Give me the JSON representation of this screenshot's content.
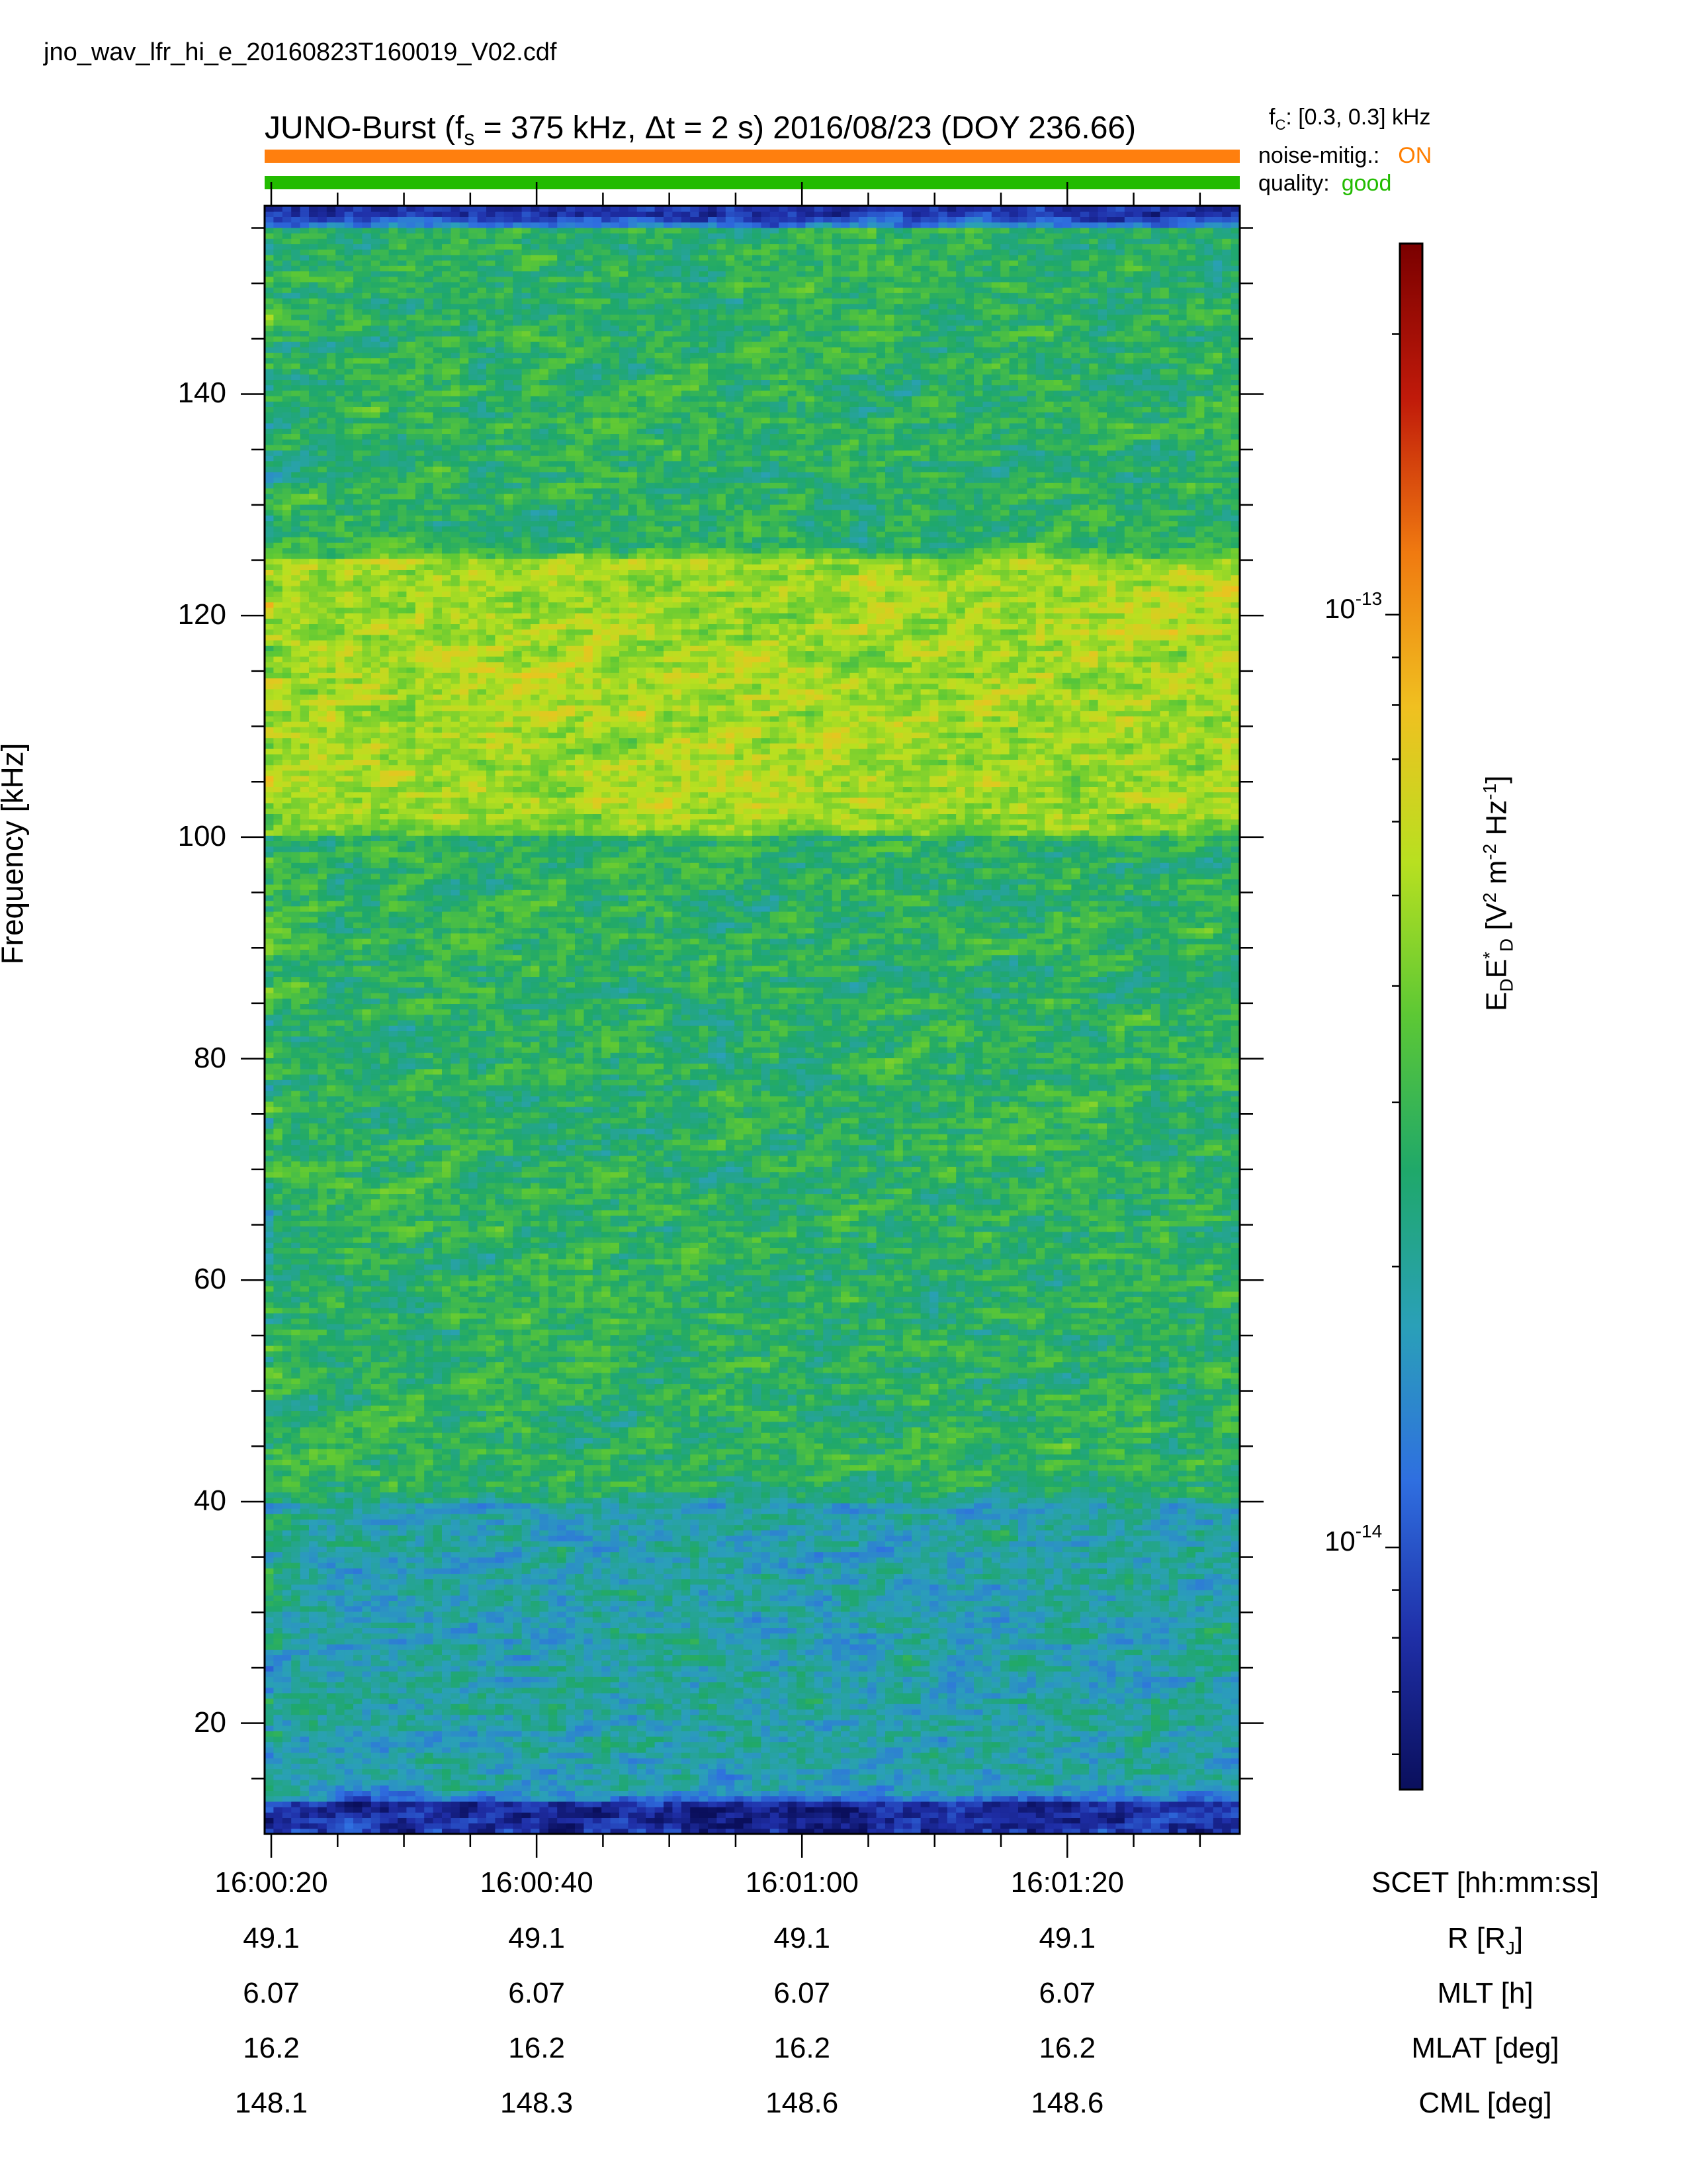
{
  "file_name": "jno_wav_lfr_hi_e_20160823T160019_V02.cdf",
  "header": {
    "title_pre": "JUNO-Burst (f",
    "title_sub": "s",
    "title_post": " = 375 kHz, Δt = 2 s)  2016/08/23 (DOY 236.66)",
    "fc_label": "f",
    "fc_sub": "C",
    "fc_value": ": [0.3, 0.3] kHz",
    "noise_label": "noise-mitig.:",
    "noise_value": "ON",
    "quality_label": "quality:",
    "quality_value": "good"
  },
  "colors": {
    "noise_bar": "#ff7f0e",
    "quality_bar": "#22bb00",
    "colormap": [
      "#0a0f5c",
      "#1f2fa8",
      "#2f6fe0",
      "#2aa0b8",
      "#1fa86a",
      "#5cc835",
      "#b8e020",
      "#f0c020",
      "#f07a10",
      "#c01a0a",
      "#7a0000"
    ]
  },
  "chart_data": {
    "type": "heatmap",
    "ylabel": "Frequency [kHz]",
    "ylim": [
      10,
      157
    ],
    "y_ticks": [
      20,
      40,
      60,
      80,
      100,
      120,
      140
    ],
    "y_minor_step": 5,
    "x_ticks": [
      "16:00:20",
      "16:00:40",
      "16:01:00",
      "16:01:20"
    ],
    "x_label": "SCET [hh:mm:ss]",
    "time_range_s": [
      19.5,
      93
    ],
    "x_tick_seconds": [
      20,
      40,
      60,
      80
    ],
    "x_minor_step_s": 5,
    "colorbar": {
      "label_parts": [
        "E",
        "D",
        "E",
        "*",
        "D",
        "  [V",
        "2",
        " m",
        "-2",
        " Hz",
        "-1",
        "]"
      ],
      "scale": "log",
      "range": [
        5.5e-15,
        2.5e-13
      ],
      "major_ticks": [
        1e-14,
        1e-13
      ],
      "major_tick_labels": [
        {
          "base": "10",
          "exp": "-14"
        },
        {
          "base": "10",
          "exp": "-13"
        }
      ]
    },
    "intensity_bands": [
      {
        "freq_range": [
          10,
          13
        ],
        "level": "very low"
      },
      {
        "freq_range": [
          13,
          40
        ],
        "level": "low"
      },
      {
        "freq_range": [
          40,
          100
        ],
        "level": "medium"
      },
      {
        "freq_range": [
          100,
          125
        ],
        "level": "high"
      },
      {
        "freq_range": [
          125,
          155
        ],
        "level": "medium"
      },
      {
        "freq_range": [
          155,
          157
        ],
        "level": "very low"
      }
    ],
    "ephemeris": {
      "rows": [
        {
          "label": "R [R",
          "label_sub": "J",
          "label_end": "]",
          "values": [
            "49.1",
            "49.1",
            "49.1",
            "49.1"
          ]
        },
        {
          "label": "MLT [h]",
          "label_sub": "",
          "label_end": "",
          "values": [
            "6.07",
            "6.07",
            "6.07",
            "6.07"
          ]
        },
        {
          "label": "MLAT [deg]",
          "label_sub": "",
          "label_end": "",
          "values": [
            "16.2",
            "16.2",
            "16.2",
            "16.2"
          ]
        },
        {
          "label": "CML [deg]",
          "label_sub": "",
          "label_end": "",
          "values": [
            "148.1",
            "148.3",
            "148.6",
            "148.6"
          ]
        }
      ]
    }
  }
}
